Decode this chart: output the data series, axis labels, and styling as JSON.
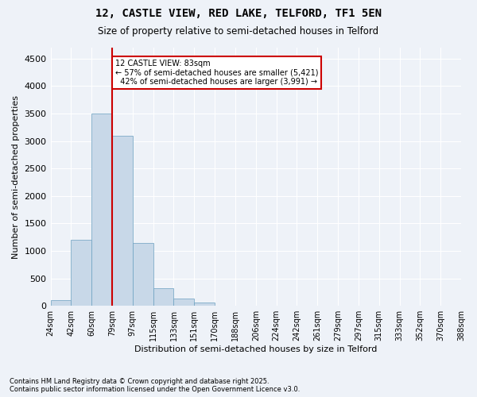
{
  "title1": "12, CASTLE VIEW, RED LAKE, TELFORD, TF1 5EN",
  "title2": "Size of property relative to semi-detached houses in Telford",
  "xlabel": "Distribution of semi-detached houses by size in Telford",
  "ylabel": "Number of semi-detached properties",
  "footer1": "Contains HM Land Registry data © Crown copyright and database right 2025.",
  "footer2": "Contains public sector information licensed under the Open Government Licence v3.0.",
  "property_label": "12 CASTLE VIEW: 83sqm",
  "pct_smaller": 57,
  "pct_larger": 42,
  "n_smaller": 5421,
  "n_larger": 3991,
  "bar_color": "#c8d8e8",
  "bar_edge_color": "#6a9fc0",
  "vline_color": "#cc0000",
  "annotation_box_color": "#cc0000",
  "background_color": "#eef2f8",
  "bin_labels": [
    "24sqm",
    "42sqm",
    "60sqm",
    "79sqm",
    "97sqm",
    "115sqm",
    "133sqm",
    "151sqm",
    "170sqm",
    "188sqm",
    "206sqm",
    "224sqm",
    "242sqm",
    "261sqm",
    "279sqm",
    "297sqm",
    "315sqm",
    "333sqm",
    "352sqm",
    "370sqm",
    "388sqm"
  ],
  "counts": [
    100,
    1200,
    3500,
    3100,
    1150,
    320,
    130,
    55,
    0,
    0,
    0,
    0,
    0,
    0,
    0,
    0,
    0,
    0,
    0,
    0
  ],
  "ylim": [
    0,
    4700
  ],
  "yticks": [
    0,
    500,
    1000,
    1500,
    2000,
    2500,
    3000,
    3500,
    4000,
    4500
  ],
  "vline_x": 3.0
}
